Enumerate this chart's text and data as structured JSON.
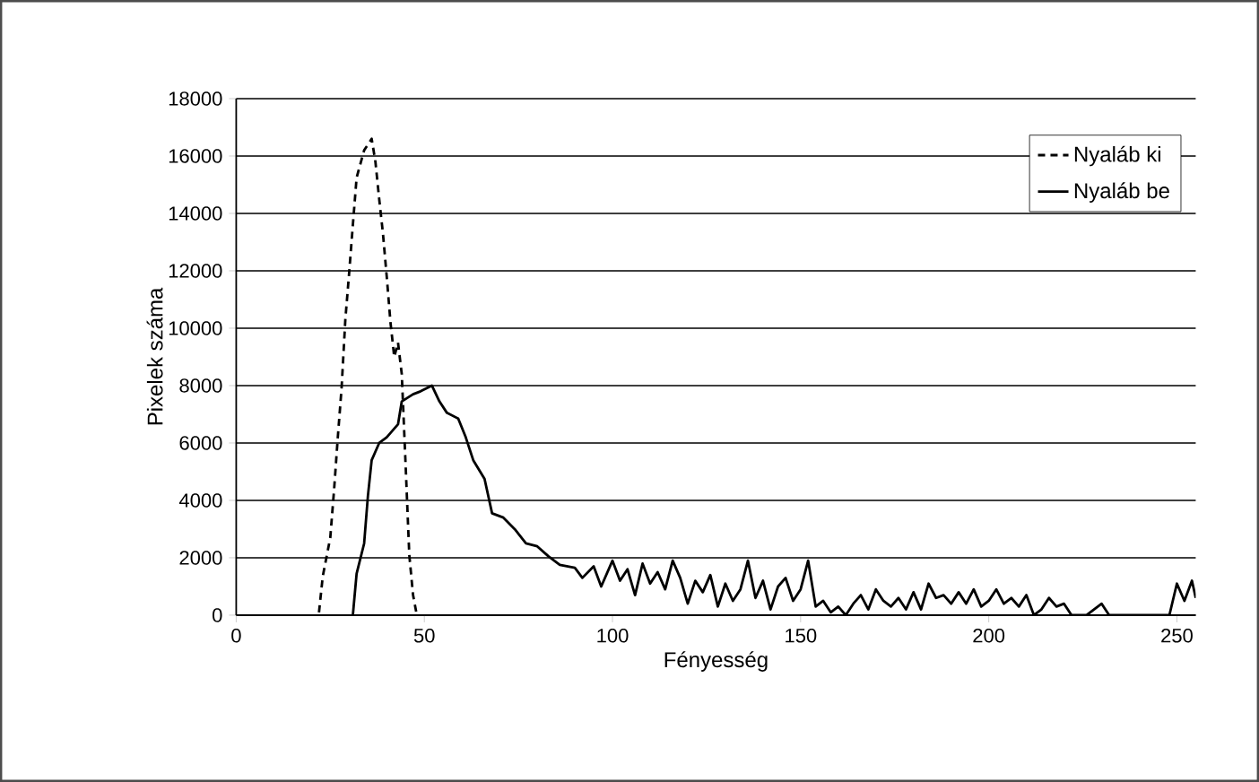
{
  "chart_data": {
    "type": "line",
    "xlabel": "Fényesség",
    "ylabel": "Pixelek száma",
    "xlim": [
      0,
      255
    ],
    "ylim": [
      0,
      18000
    ],
    "xticks": [
      0,
      50,
      100,
      150,
      200,
      250
    ],
    "yticks": [
      0,
      2000,
      4000,
      6000,
      8000,
      10000,
      12000,
      14000,
      16000,
      18000
    ],
    "grid": "y",
    "legend": "top right",
    "series": [
      {
        "name": "Nyaláb ki",
        "color": "#000000",
        "line_style": "dashed",
        "x": [
          22,
          23,
          25,
          26,
          27,
          28,
          29,
          30,
          31,
          32,
          34,
          36,
          37,
          38,
          39,
          40,
          41,
          42,
          43,
          44,
          45,
          46,
          47,
          48
        ],
        "values": [
          100,
          1350,
          2700,
          4350,
          6200,
          7900,
          10300,
          11900,
          13600,
          15250,
          16200,
          16600,
          15800,
          14500,
          13300,
          11800,
          10200,
          9000,
          9500,
          8400,
          5300,
          2100,
          700,
          0
        ]
      },
      {
        "name": "Nyaláb be",
        "color": "#000000",
        "line_style": "solid",
        "x": [
          31,
          32,
          34,
          35,
          36,
          38,
          40,
          43,
          44,
          47,
          49,
          52,
          54,
          56,
          59,
          61,
          63,
          66,
          68,
          71,
          74,
          77,
          80,
          83,
          86,
          90,
          92,
          95,
          97,
          100,
          102,
          104,
          106,
          108,
          110,
          112,
          114,
          116,
          118,
          120,
          122,
          124,
          126,
          128,
          130,
          132,
          134,
          136,
          138,
          140,
          142,
          144,
          146,
          148,
          150,
          152,
          154,
          156,
          158,
          160,
          162,
          164,
          166,
          168,
          170,
          172,
          174,
          176,
          178,
          180,
          182,
          184,
          186,
          188,
          190,
          192,
          194,
          196,
          198,
          200,
          202,
          204,
          206,
          208,
          210,
          212,
          214,
          216,
          218,
          220,
          222,
          226,
          230,
          232,
          240,
          248,
          250,
          252,
          254,
          255
        ],
        "values": [
          0,
          1450,
          2500,
          4150,
          5400,
          6000,
          6200,
          6650,
          7450,
          7700,
          7800,
          8000,
          7450,
          7050,
          6850,
          6200,
          5400,
          4750,
          3550,
          3400,
          3000,
          2500,
          2400,
          2050,
          1750,
          1650,
          1300,
          1700,
          1000,
          1900,
          1200,
          1600,
          700,
          1800,
          1100,
          1500,
          900,
          1900,
          1300,
          400,
          1200,
          800,
          1400,
          300,
          1100,
          500,
          900,
          1900,
          600,
          1200,
          200,
          1000,
          1300,
          500,
          900,
          1900,
          300,
          500,
          100,
          300,
          0,
          400,
          700,
          200,
          900,
          500,
          300,
          600,
          200,
          800,
          200,
          1100,
          600,
          700,
          400,
          800,
          400,
          900,
          300,
          500,
          900,
          400,
          600,
          300,
          700,
          0,
          200,
          600,
          300,
          400,
          0,
          0,
          400,
          0,
          0,
          0,
          1100,
          500,
          1200,
          600
        ]
      }
    ]
  }
}
